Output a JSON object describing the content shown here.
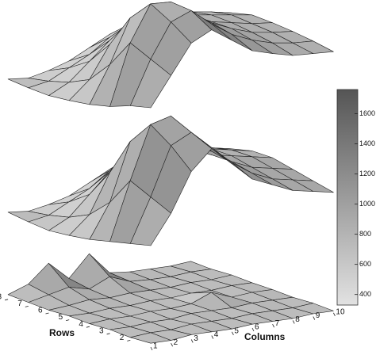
{
  "chart_data": {
    "type": "surface",
    "xlabel": "Columns",
    "ylabel": "Rows",
    "xticks": [
      1,
      2,
      3,
      4,
      5,
      6,
      7,
      8,
      9,
      10
    ],
    "yticks": [
      2,
      3,
      4,
      5,
      6,
      7,
      8
    ],
    "colorbar": {
      "clim": [
        330,
        1760
      ],
      "ticks": [
        400,
        600,
        800,
        1000,
        1200,
        1400,
        1600
      ]
    },
    "surfaces": [
      {
        "values": [
          [
            650,
            950,
            1250,
            1350,
            1200,
            1050,
            980,
            920,
            900,
            880
          ],
          [
            600,
            1050,
            1400,
            1480,
            1300,
            1150,
            1050,
            980,
            940,
            920
          ],
          [
            520,
            1150,
            1520,
            1500,
            1350,
            1200,
            1100,
            1020,
            980,
            950
          ],
          [
            470,
            850,
            1300,
            1400,
            1300,
            1180,
            1100,
            1050,
            1000,
            970
          ],
          [
            440,
            620,
            950,
            1150,
            1200,
            1150,
            1100,
            1060,
            1020,
            980
          ],
          [
            420,
            520,
            700,
            880,
            1020,
            1080,
            1060,
            1020,
            980,
            930
          ],
          [
            430,
            460,
            560,
            660,
            800,
            900,
            950,
            920,
            880,
            830
          ],
          [
            450,
            420,
            460,
            520,
            620,
            720,
            780,
            780,
            740,
            690
          ]
        ]
      },
      {
        "values": [
          [
            600,
            900,
            1300,
            1500,
            1300,
            1100,
            1000,
            900,
            850,
            800
          ],
          [
            550,
            1000,
            1500,
            1600,
            1400,
            1200,
            1050,
            950,
            900,
            850
          ],
          [
            500,
            1100,
            1650,
            1700,
            1450,
            1250,
            1100,
            1000,
            950,
            900
          ],
          [
            450,
            800,
            1400,
            1500,
            1350,
            1200,
            1100,
            1050,
            1000,
            950
          ],
          [
            420,
            600,
            1000,
            1200,
            1250,
            1150,
            1100,
            1050,
            1000,
            950
          ],
          [
            400,
            500,
            700,
            900,
            1050,
            1100,
            1050,
            1000,
            950,
            900
          ],
          [
            420,
            450,
            550,
            650,
            800,
            900,
            950,
            900,
            850,
            800
          ],
          [
            450,
            420,
            450,
            500,
            600,
            700,
            750,
            750,
            700,
            650
          ]
        ]
      },
      {
        "values": [
          [
            40,
            30,
            50,
            40,
            30,
            40,
            30,
            20,
            30,
            20
          ],
          [
            30,
            40,
            30,
            50,
            40,
            30,
            40,
            30,
            20,
            30
          ],
          [
            40,
            30,
            40,
            30,
            50,
            40,
            30,
            40,
            30,
            20
          ],
          [
            30,
            40,
            30,
            40,
            30,
            40,
            120,
            30,
            40,
            30
          ],
          [
            40,
            30,
            40,
            30,
            40,
            30,
            40,
            30,
            40,
            30
          ],
          [
            30,
            40,
            60,
            40,
            50,
            40,
            30,
            40,
            30,
            40
          ],
          [
            40,
            80,
            120,
            60,
            150,
            60,
            40,
            30,
            40,
            30
          ],
          [
            50,
            120,
            300,
            100,
            320,
            80,
            50,
            40,
            30,
            40
          ]
        ]
      }
    ]
  }
}
